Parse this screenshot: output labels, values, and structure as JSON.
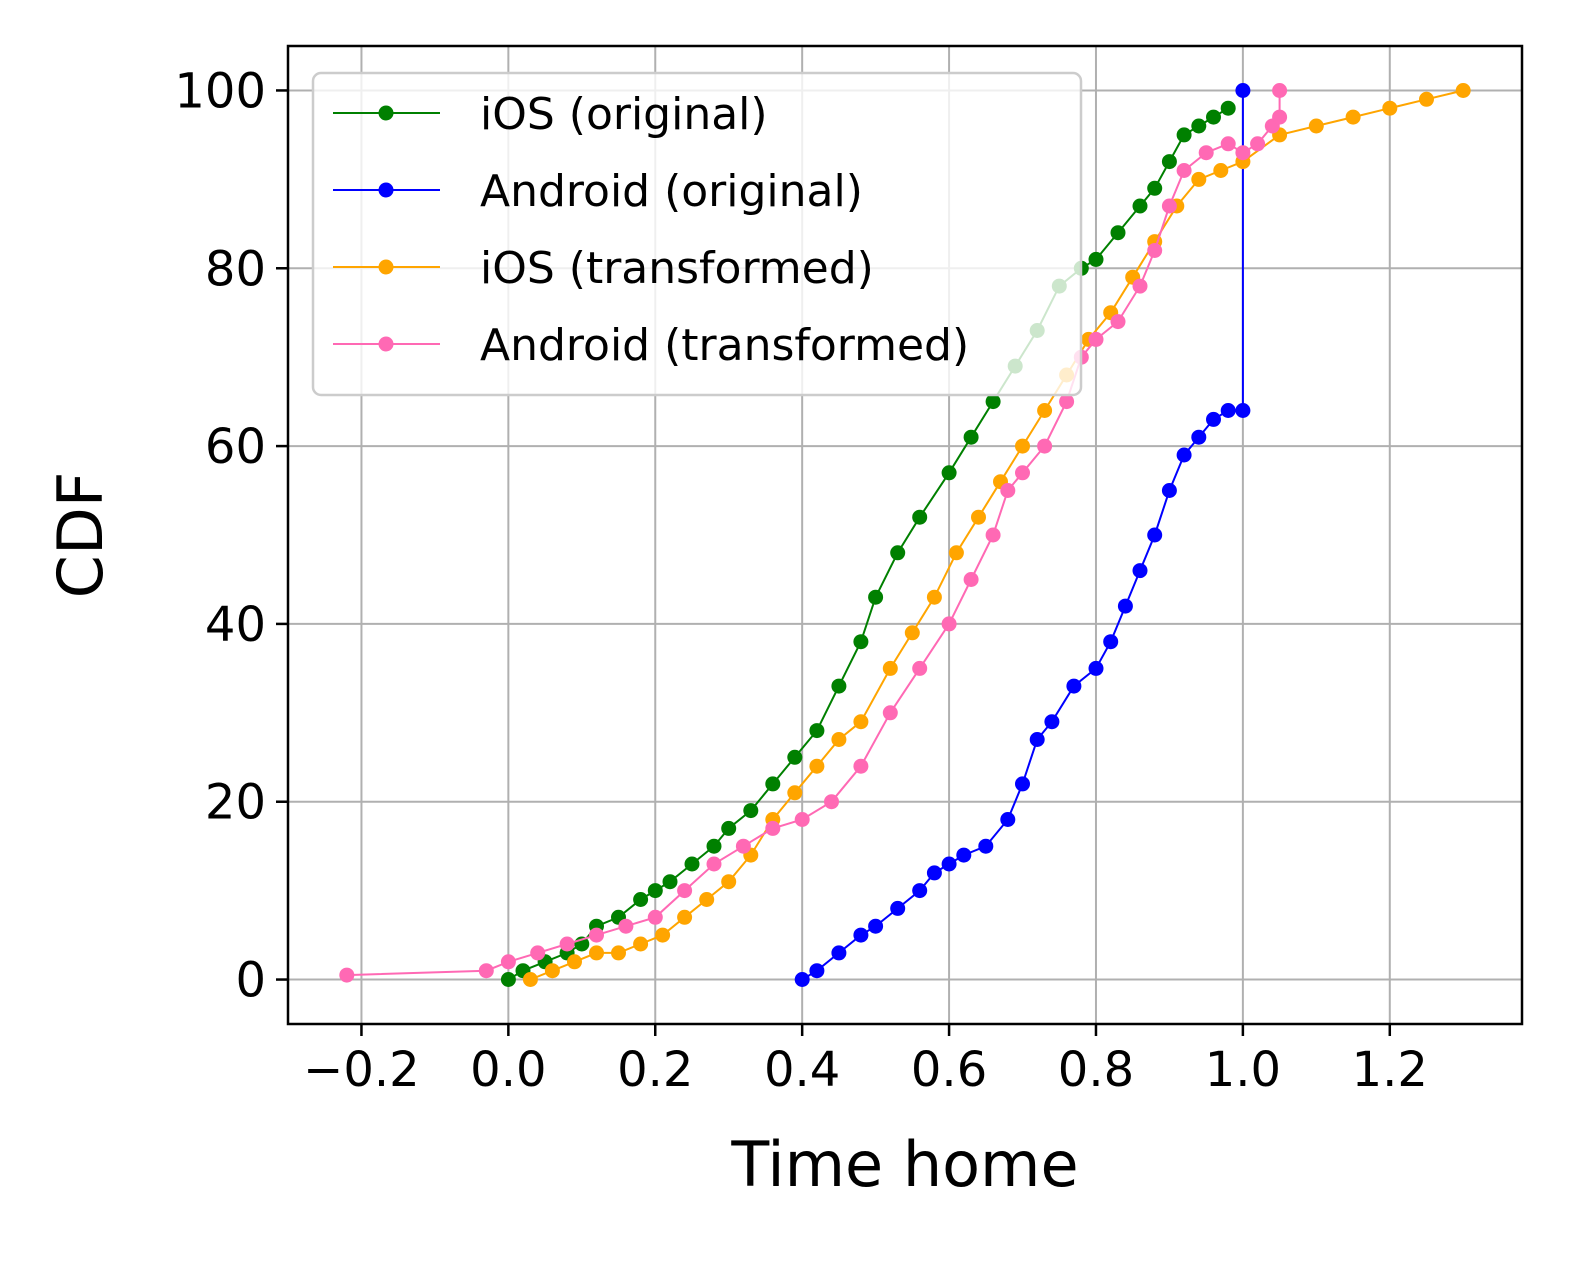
{
  "chart_data": {
    "type": "line",
    "title": "",
    "xlabel": "Time home",
    "ylabel": "CDF",
    "xlim": [
      -0.3,
      1.38
    ],
    "ylim": [
      -5,
      105
    ],
    "xticks": [
      -0.2,
      0.0,
      0.2,
      0.4,
      0.6,
      0.8,
      1.0,
      1.2
    ],
    "xtick_labels": [
      "−0.2",
      "0.0",
      "0.2",
      "0.4",
      "0.6",
      "0.8",
      "1.0",
      "1.2"
    ],
    "yticks": [
      0,
      20,
      40,
      60,
      80,
      100
    ],
    "ytick_labels": [
      "0",
      "20",
      "40",
      "60",
      "80",
      "100"
    ],
    "grid": true,
    "legend_position": "top-left",
    "series": [
      {
        "name": "iOS (original)",
        "color": "#008000",
        "x": [
          0.0,
          0.02,
          0.05,
          0.08,
          0.1,
          0.12,
          0.15,
          0.18,
          0.2,
          0.22,
          0.25,
          0.28,
          0.3,
          0.33,
          0.36,
          0.39,
          0.42,
          0.45,
          0.48,
          0.5,
          0.53,
          0.56,
          0.6,
          0.63,
          0.66,
          0.69,
          0.72,
          0.75,
          0.78,
          0.8,
          0.83,
          0.86,
          0.88,
          0.9,
          0.92,
          0.94,
          0.96,
          0.98
        ],
        "y": [
          0,
          1,
          2,
          3,
          4,
          6,
          7,
          9,
          10,
          11,
          13,
          15,
          17,
          19,
          22,
          25,
          28,
          33,
          38,
          43,
          48,
          52,
          57,
          61,
          65,
          69,
          73,
          78,
          80,
          81,
          84,
          87,
          89,
          92,
          95,
          96,
          97,
          98
        ]
      },
      {
        "name": "Android (original)",
        "color": "#0000ff",
        "x": [
          0.4,
          0.42,
          0.45,
          0.48,
          0.5,
          0.53,
          0.56,
          0.58,
          0.6,
          0.62,
          0.65,
          0.68,
          0.7,
          0.72,
          0.74,
          0.77,
          0.8,
          0.82,
          0.84,
          0.86,
          0.88,
          0.9,
          0.92,
          0.94,
          0.96,
          0.98,
          1.0,
          1.0
        ],
        "y": [
          0,
          1,
          3,
          5,
          6,
          8,
          10,
          12,
          13,
          14,
          15,
          18,
          22,
          27,
          29,
          33,
          35,
          38,
          42,
          46,
          50,
          55,
          59,
          61,
          63,
          64,
          64,
          100
        ]
      },
      {
        "name": "iOS (transformed)",
        "color": "#ffa500",
        "x": [
          0.03,
          0.06,
          0.09,
          0.12,
          0.15,
          0.18,
          0.21,
          0.24,
          0.27,
          0.3,
          0.33,
          0.36,
          0.39,
          0.42,
          0.45,
          0.48,
          0.52,
          0.55,
          0.58,
          0.61,
          0.64,
          0.67,
          0.7,
          0.73,
          0.76,
          0.79,
          0.82,
          0.85,
          0.88,
          0.91,
          0.94,
          0.97,
          1.0,
          1.05,
          1.1,
          1.15,
          1.2,
          1.25,
          1.3
        ],
        "y": [
          0,
          1,
          2,
          3,
          3,
          4,
          5,
          7,
          9,
          11,
          14,
          18,
          21,
          24,
          27,
          29,
          35,
          39,
          43,
          48,
          52,
          56,
          60,
          64,
          68,
          72,
          75,
          79,
          83,
          87,
          90,
          91,
          92,
          95,
          96,
          97,
          98,
          99,
          100
        ]
      },
      {
        "name": "Android (transformed)",
        "color": "#ff69b4",
        "x": [
          -0.22,
          -0.03,
          0.0,
          0.04,
          0.08,
          0.12,
          0.16,
          0.2,
          0.24,
          0.28,
          0.32,
          0.36,
          0.4,
          0.44,
          0.48,
          0.52,
          0.56,
          0.6,
          0.63,
          0.66,
          0.68,
          0.7,
          0.73,
          0.76,
          0.78,
          0.8,
          0.83,
          0.86,
          0.88,
          0.9,
          0.92,
          0.95,
          0.98,
          1.0,
          1.02,
          1.04,
          1.05,
          1.05
        ],
        "y": [
          0.5,
          1,
          2,
          3,
          4,
          5,
          6,
          7,
          10,
          13,
          15,
          17,
          18,
          20,
          24,
          30,
          35,
          40,
          45,
          50,
          55,
          57,
          60,
          65,
          70,
          72,
          74,
          78,
          82,
          87,
          91,
          93,
          94,
          93,
          94,
          96,
          97,
          100
        ]
      }
    ]
  }
}
